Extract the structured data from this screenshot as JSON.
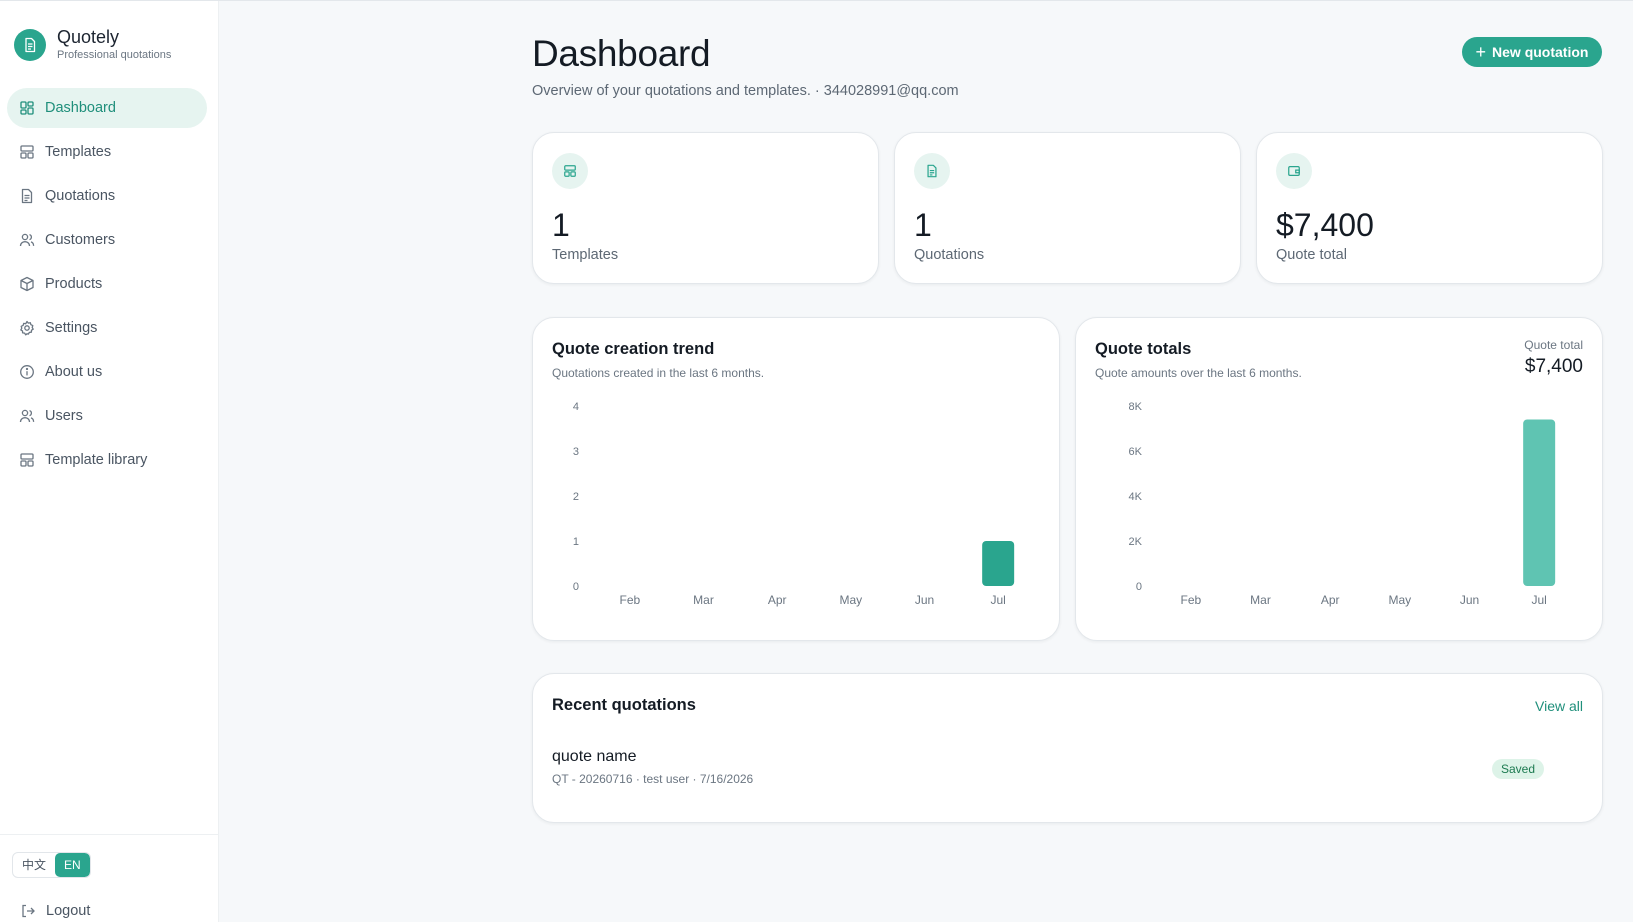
{
  "brand": {
    "name": "Quotely",
    "subtitle": "Professional quotations"
  },
  "sidebar": {
    "items": [
      {
        "label": "Dashboard",
        "icon": "dashboard-grid-icon",
        "active": true
      },
      {
        "label": "Templates",
        "icon": "template-layout-icon"
      },
      {
        "label": "Quotations",
        "icon": "document-icon"
      },
      {
        "label": "Customers",
        "icon": "users-icon"
      },
      {
        "label": "Products",
        "icon": "box-icon"
      },
      {
        "label": "Settings",
        "icon": "gear-icon"
      },
      {
        "label": "About us",
        "icon": "info-icon"
      },
      {
        "label": "Users",
        "icon": "users-icon"
      },
      {
        "label": "Template library",
        "icon": "template-layout-icon"
      }
    ],
    "language": {
      "options": [
        "中文",
        "EN"
      ],
      "selected": "EN"
    },
    "logout_label": "Logout"
  },
  "header": {
    "title": "Dashboard",
    "subtitle": "Overview of your quotations and templates. · 344028991@qq.com",
    "new_button_label": "New quotation"
  },
  "stats": [
    {
      "value": "1",
      "label": "Templates",
      "icon": "template-layout-icon"
    },
    {
      "value": "1",
      "label": "Quotations",
      "icon": "document-icon"
    },
    {
      "value": "$7,400",
      "label": "Quote total",
      "icon": "wallet-icon"
    }
  ],
  "trend": {
    "title": "Quote creation trend",
    "subtitle": "Quotations created in the last 6 months."
  },
  "totals": {
    "title": "Quote totals",
    "subtitle": "Quote amounts over the last 6 months.",
    "total_label": "Quote total",
    "total_value": "$7,400"
  },
  "recent": {
    "title": "Recent quotations",
    "view_all_label": "View all",
    "items": [
      {
        "name": "quote name",
        "meta": "QT - 20260716 · test user · 7/16/2026",
        "status": "Saved"
      }
    ]
  },
  "colors": {
    "accent": "#2aa58e",
    "accent_light": "#5fc4b2",
    "active_bg": "#e6f4f0"
  },
  "chart_data": [
    {
      "type": "bar",
      "categories": [
        "Feb",
        "Mar",
        "Apr",
        "May",
        "Jun",
        "Jul"
      ],
      "values": [
        0,
        0,
        0,
        0,
        0,
        1
      ],
      "ylim": [
        0,
        4
      ],
      "yticks": [
        "0",
        "1",
        "2",
        "3",
        "4"
      ],
      "grid": false,
      "color": "#2aa58e"
    },
    {
      "type": "bar",
      "categories": [
        "Feb",
        "Mar",
        "Apr",
        "May",
        "Jun",
        "Jul"
      ],
      "values": [
        0,
        0,
        0,
        0,
        0,
        7400
      ],
      "ylim": [
        0,
        8000
      ],
      "yticks": [
        "0",
        "2K",
        "4K",
        "6K",
        "8K"
      ],
      "grid": false,
      "color": "#5fc4b2"
    }
  ]
}
